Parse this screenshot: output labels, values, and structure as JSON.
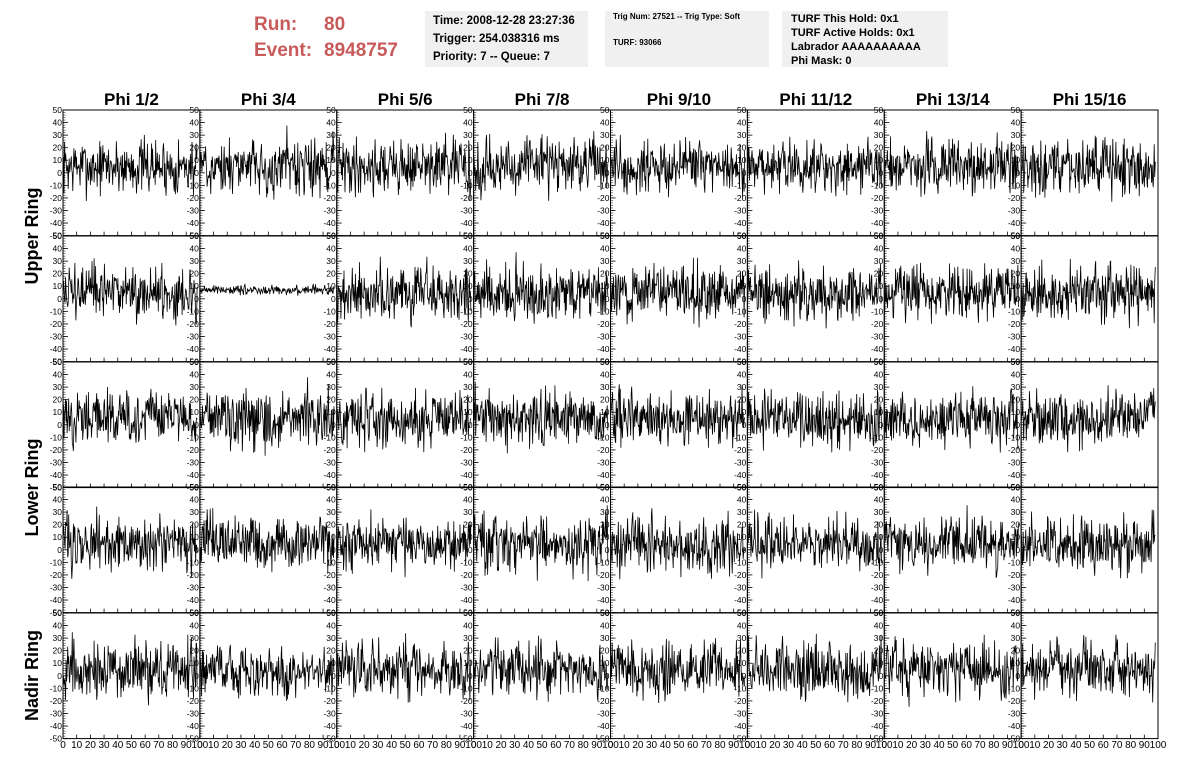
{
  "header": {
    "run_label": "Run:",
    "run_value": "80",
    "event_label": "Event:",
    "event_value": "8948757",
    "time": "Time: 2008-12-28 23:27:36",
    "trigger": "Trigger: 254.038316 ms",
    "priority": "Priority: 7 -- Queue: 7",
    "trig_num": "Trig Num: 27521 -- Trig Type: Soft",
    "turf": "TURF: 93066",
    "turf_this_hold": "TURF This Hold: 0x1",
    "turf_active_holds": "TURF Active Holds: 0x1",
    "labrador": "Labrador AAAAAAAAAA",
    "phi_mask": "Phi Mask: 0"
  },
  "colors": {
    "header_red": "#c85a5a",
    "info_bg": "#f0f0f0",
    "trace": "#000000"
  },
  "chart_data": {
    "type": "line",
    "column_titles": [
      "Phi 1/2",
      "Phi 3/4",
      "Phi 5/6",
      "Phi 7/8",
      "Phi 9/10",
      "Phi 11/12",
      "Phi 13/14",
      "Phi 15/16"
    ],
    "row_titles": [
      "Upper Ring",
      "Lower Ring",
      "Nadir Ring"
    ],
    "xlim": [
      0,
      100
    ],
    "ylim": [
      -50,
      50
    ],
    "y_ticks": [
      -50,
      -40,
      -30,
      -20,
      -10,
      0,
      10,
      20,
      30,
      40,
      50
    ],
    "x_ticks": [
      0,
      10,
      20,
      30,
      40,
      50,
      60,
      70,
      80,
      90,
      100
    ],
    "y_tick_labels": [
      "-50",
      "-40",
      "-30",
      "-20",
      "-10",
      "0",
      "10",
      "20",
      "30",
      "40",
      "50"
    ],
    "x_tick_labels": [
      "0",
      "10",
      "20",
      "30",
      "40",
      "50",
      "60",
      "70",
      "80",
      "90",
      "100"
    ],
    "grid": false,
    "traces": {
      "samples_per_trace": 260,
      "default_baseline": 5,
      "default_noise": 12,
      "panels": [
        {
          "row": 1,
          "col": 1,
          "baseline": 7,
          "noise": 2
        }
      ]
    }
  }
}
